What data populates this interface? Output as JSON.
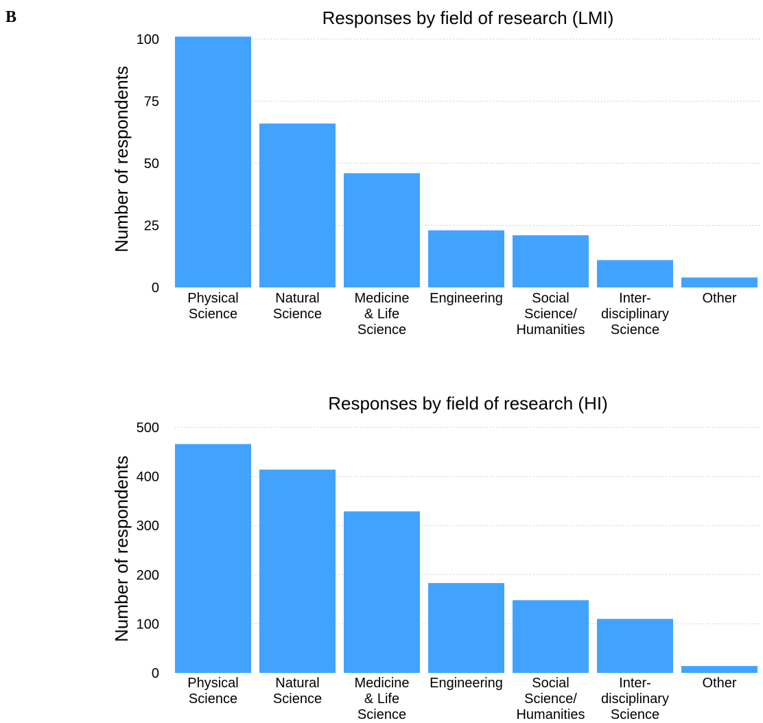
{
  "figure": {
    "panel_label": "B"
  },
  "chart_data": [
    {
      "type": "bar",
      "title": "Responses by field of research (LMI)",
      "xlabel": "",
      "ylabel": "Number of respondents",
      "ylim": [
        0,
        100
      ],
      "yticks": [
        "0",
        "25",
        "50",
        "75",
        "100"
      ],
      "grid": "horizontal dotted",
      "categories": [
        [
          "Physical",
          "Science"
        ],
        [
          "Natural",
          "Science"
        ],
        [
          "Medicine",
          "& Life",
          "Science"
        ],
        [
          "Engineering"
        ],
        [
          "Social",
          "Science/",
          "Humanities"
        ],
        [
          "Inter-",
          "disciplinary",
          "Science"
        ],
        [
          "Other"
        ]
      ],
      "values": [
        101,
        66,
        46,
        23,
        21,
        11,
        4
      ],
      "color": "#42a3ff"
    },
    {
      "type": "bar",
      "title": "Responses by field of research (HI)",
      "xlabel": "",
      "ylabel": "Number of respondents",
      "ylim": [
        0,
        500
      ],
      "yticks": [
        "0",
        "100",
        "200",
        "300",
        "400",
        "500"
      ],
      "grid": "horizontal dotted",
      "categories": [
        [
          "Physical",
          "Science"
        ],
        [
          "Natural",
          "Science"
        ],
        [
          "Medicine",
          "& Life",
          "Science"
        ],
        [
          "Engineering"
        ],
        [
          "Social",
          "Science/",
          "Humanities"
        ],
        [
          "Inter-",
          "disciplinary",
          "Science"
        ],
        [
          "Other"
        ]
      ],
      "values": [
        466,
        414,
        329,
        183,
        148,
        110,
        14
      ],
      "color": "#42a3ff"
    }
  ]
}
